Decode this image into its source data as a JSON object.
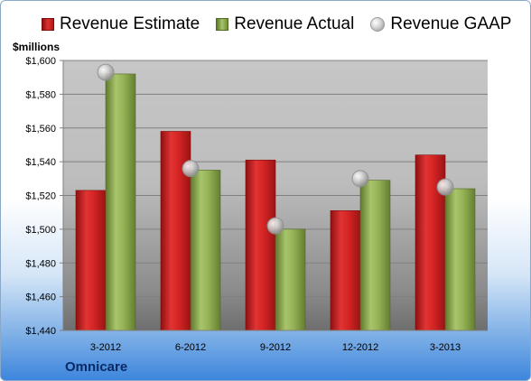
{
  "chart_data": {
    "type": "bar",
    "categories": [
      "3-2012",
      "6-2012",
      "9-2012",
      "12-2012",
      "3-2013"
    ],
    "series": [
      {
        "name": "Revenue Estimate",
        "kind": "bar",
        "color": "#c42020",
        "values": [
          1523,
          1558,
          1541,
          1511,
          1544
        ]
      },
      {
        "name": "Revenue Actual",
        "kind": "bar",
        "color": "#8aa84a",
        "values": [
          1592,
          1535,
          1500,
          1529,
          1524
        ]
      },
      {
        "name": "Revenue GAAP",
        "kind": "marker",
        "color": "#b8b8b8",
        "values": [
          1593,
          1536,
          1502,
          1530,
          1525
        ]
      }
    ],
    "ylabel": "$millions",
    "ylim": [
      1440,
      1600
    ],
    "yticks": [
      1440,
      1460,
      1480,
      1500,
      1520,
      1540,
      1560,
      1580,
      1600
    ],
    "ytick_labels": [
      "$1,440",
      "$1,460",
      "$1,480",
      "$1,500",
      "$1,520",
      "$1,540",
      "$1,560",
      "$1,580",
      "$1,600"
    ],
    "grid": true,
    "legend_position": "top"
  },
  "company": "Omnicare"
}
